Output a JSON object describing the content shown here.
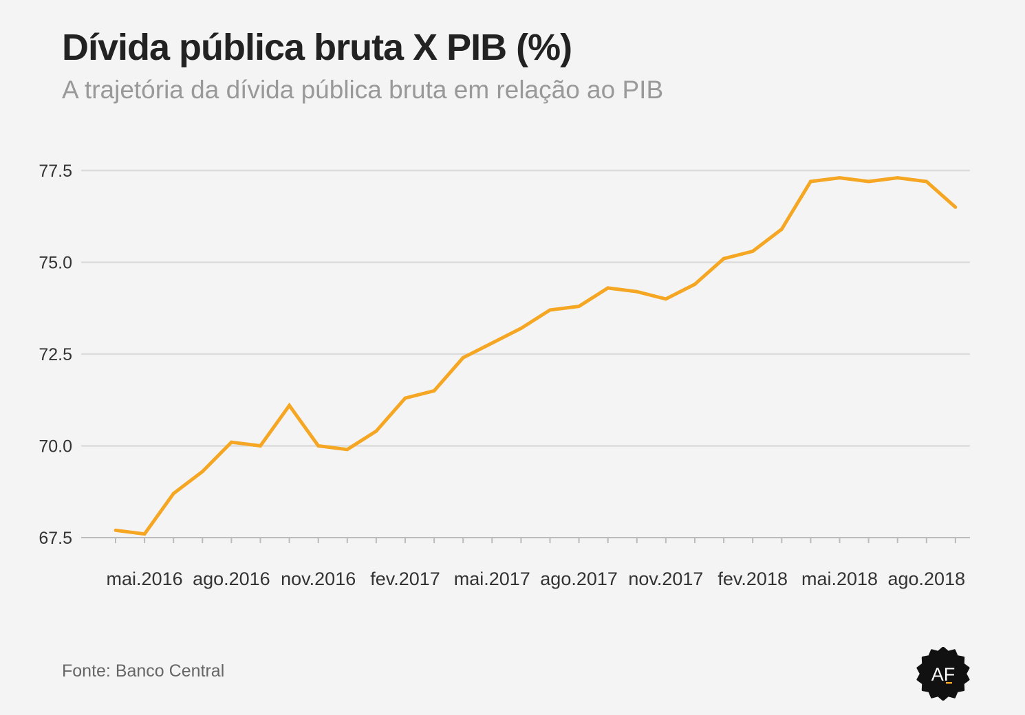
{
  "header": {
    "title": "Dívida pública bruta X PIB (%)",
    "subtitle": "A trajetória da dívida pública bruta em relação ao PIB"
  },
  "footer": {
    "source": "Fonte: Banco Central",
    "logo_text": "AF"
  },
  "colors": {
    "line": "#f5a623",
    "grid": "#dcdcdc",
    "axis": "#bbbbbb",
    "tick_text": "#333333",
    "logo_bg": "#111111",
    "logo_accent": "#f5a623"
  },
  "chart_data": {
    "type": "line",
    "title": "Dívida pública bruta X PIB (%)",
    "subtitle": "A trajetória da dívida pública bruta em relação ao PIB",
    "xlabel": "",
    "ylabel": "",
    "ylim": [
      67.5,
      77.5
    ],
    "yticks": [
      "67.5",
      "70.0",
      "72.5",
      "75.0",
      "77.5"
    ],
    "grid": "horizontal",
    "legend": "none",
    "x": [
      "abr.2016",
      "mai.2016",
      "jun.2016",
      "jul.2016",
      "ago.2016",
      "set.2016",
      "out.2016",
      "nov.2016",
      "dez.2016",
      "jan.2017",
      "fev.2017",
      "mar.2017",
      "abr.2017",
      "mai.2017",
      "jun.2017",
      "jul.2017",
      "ago.2017",
      "set.2017",
      "out.2017",
      "nov.2017",
      "dez.2017",
      "jan.2018",
      "fev.2018",
      "mar.2018",
      "abr.2018",
      "mai.2018",
      "jun.2018",
      "jul.2018",
      "ago.2018",
      "set.2018"
    ],
    "x_tick_labels": [
      "mai.2016",
      "ago.2016",
      "nov.2016",
      "fev.2017",
      "mai.2017",
      "ago.2017",
      "nov.2017",
      "fev.2018",
      "mai.2018",
      "ago.2018"
    ],
    "series": [
      {
        "values": [
          67.7,
          67.6,
          68.7,
          69.3,
          70.1,
          70.0,
          71.1,
          70.0,
          69.9,
          70.4,
          71.3,
          71.5,
          72.4,
          72.8,
          73.2,
          73.7,
          73.8,
          74.3,
          74.2,
          74.0,
          74.4,
          75.1,
          75.3,
          75.9,
          77.2,
          77.3,
          77.2,
          77.3,
          77.2,
          76.5
        ]
      }
    ]
  }
}
